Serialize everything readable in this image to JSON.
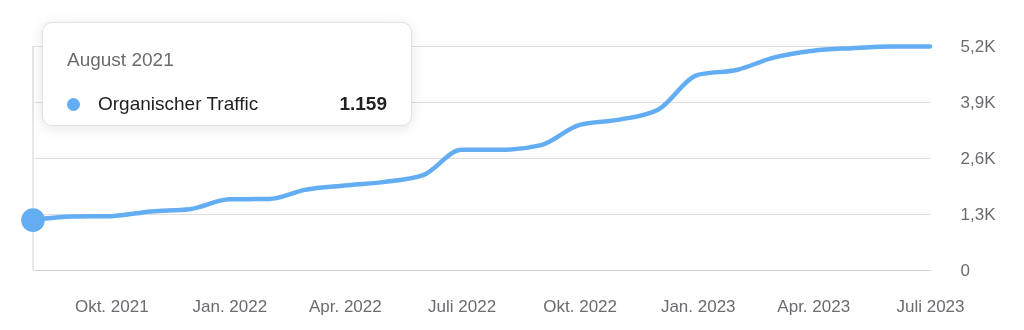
{
  "chart_data": {
    "type": "line",
    "x": [
      "2021-08",
      "2021-09",
      "2021-10",
      "2021-11",
      "2021-12",
      "2022-01",
      "2022-02",
      "2022-03",
      "2022-04",
      "2022-05",
      "2022-06",
      "2022-07",
      "2022-08",
      "2022-09",
      "2022-10",
      "2022-11",
      "2022-12",
      "2023-01",
      "2023-02",
      "2023-03",
      "2023-04",
      "2023-05",
      "2023-06",
      "2023-07"
    ],
    "series": [
      {
        "name": "Organischer Traffic",
        "color": "#63adf2",
        "values": [
          1159,
          1240,
          1250,
          1360,
          1410,
          1640,
          1650,
          1860,
          1960,
          2040,
          2200,
          2790,
          2790,
          2900,
          3370,
          3490,
          3720,
          4530,
          4650,
          4930,
          5090,
          5150,
          5190,
          5190
        ]
      }
    ],
    "xlim": [
      "2021-08",
      "2023-07"
    ],
    "xticks": [
      {
        "value": "2021-10",
        "label": "Okt. 2021"
      },
      {
        "value": "2022-01",
        "label": "Jan. 2022"
      },
      {
        "value": "2022-04",
        "label": "Apr. 2022"
      },
      {
        "value": "2022-07",
        "label": "Juli 2022"
      },
      {
        "value": "2022-10",
        "label": "Okt. 2022"
      },
      {
        "value": "2023-01",
        "label": "Jan. 2023"
      },
      {
        "value": "2023-04",
        "label": "Apr. 2023"
      },
      {
        "value": "2023-07",
        "label": "Juli 2023"
      }
    ],
    "ylim": [
      0,
      5200
    ],
    "yticks": [
      0,
      {
        "value": 1300,
        "label": "1,3K"
      },
      {
        "value": 2600,
        "label": "2,6K"
      },
      {
        "value": 3900,
        "label": "3,9K"
      },
      {
        "value": 5200,
        "label": "5,2K"
      }
    ],
    "grid": "y",
    "legend": "top left",
    "marker": "none",
    "line_style": "solid",
    "annotations": [
      "August 2021",
      "1.159"
    ]
  }
}
